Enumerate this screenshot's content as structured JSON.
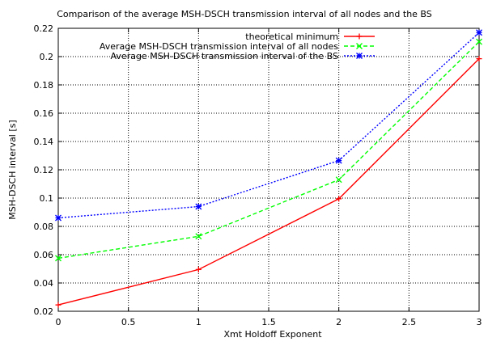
{
  "chart_data": {
    "type": "line",
    "title": "Comparison of the average MSH-DSCH transmission interval of all nodes and the BS",
    "xlabel": "Xmt  Holdoff  Exponent",
    "ylabel": "MSH-DSCH interval [s]",
    "xlim": [
      0,
      3
    ],
    "ylim": [
      0.02,
      0.22
    ],
    "x_ticks": [
      0,
      0.5,
      1,
      1.5,
      2,
      2.5,
      3
    ],
    "x_tick_labels": [
      "0",
      "0.5",
      "1",
      "1.5",
      "2",
      "2.5",
      "3"
    ],
    "y_ticks": [
      0.02,
      0.04,
      0.06,
      0.08,
      0.1,
      0.12,
      0.14,
      0.16,
      0.18,
      0.2,
      0.22
    ],
    "y_tick_labels": [
      "0.02",
      "0.04",
      "0.06",
      "0.08",
      "0.1",
      "0.12",
      "0.14",
      "0.16",
      "0.18",
      "0.2",
      "0.22"
    ],
    "grid": true,
    "legend_position": "top-right",
    "x": [
      0,
      1,
      2,
      3
    ],
    "series": [
      {
        "name": "theoretical minimum",
        "values": [
          0.0245,
          0.0495,
          0.0995,
          0.1985
        ],
        "color": "#ff0000",
        "marker": "plus",
        "dash": "solid"
      },
      {
        "name": "Average MSH-DSCH transmission interval of all nodes",
        "values": [
          0.0575,
          0.073,
          0.113,
          0.2105
        ],
        "color": "#00ff00",
        "marker": "cross",
        "dash": "dashed"
      },
      {
        "name": "Average MSH-DSCH transmission interval of the BS",
        "values": [
          0.086,
          0.094,
          0.1265,
          0.217
        ],
        "color": "#0000ff",
        "marker": "star",
        "dash": "dotted"
      }
    ]
  }
}
